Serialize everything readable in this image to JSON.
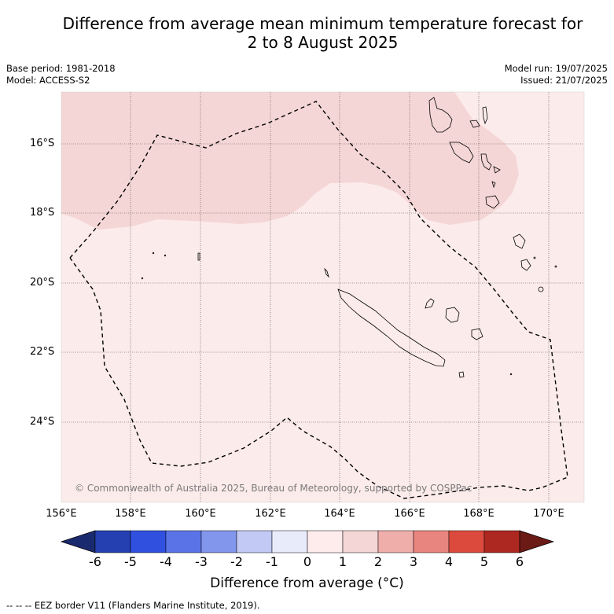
{
  "title": {
    "line1": "Difference from average mean minimum temperature forecast for",
    "line2": "2 to 8 August 2025"
  },
  "meta_left": {
    "base_period": "Base period: 1981-2018",
    "model": "Model: ACCESS-S2"
  },
  "meta_right": {
    "model_run": "Model run: 19/07/2025",
    "issued": "Issued: 21/07/2025"
  },
  "map": {
    "latitude_labels": [
      "16°S",
      "18°S",
      "20°S",
      "22°S",
      "24°S"
    ],
    "longitude_labels": [
      "156°E",
      "158°E",
      "160°E",
      "162°E",
      "164°E",
      "166°E",
      "168°E",
      "170°E"
    ],
    "copyright": "© Commonwealth of Australia 2025, Bureau of Meteorology, supported by COSPPac",
    "regions": [
      {
        "category": "1 to 2",
        "color": "#f5d6d6"
      },
      {
        "category": "0 to 1",
        "color": "#fcebeb"
      }
    ]
  },
  "colorbar": {
    "ticks": [
      "-6",
      "-5",
      "-4",
      "-3",
      "-2",
      "-1",
      "0",
      "1",
      "2",
      "3",
      "4",
      "5",
      "6"
    ],
    "colors": [
      "#1a2a6e",
      "#2540b0",
      "#3050e0",
      "#5a74e8",
      "#8296ec",
      "#c2c9f4",
      "#e8ebfa",
      "#fdeceb",
      "#f5d6d6",
      "#f0aeab",
      "#e8857e",
      "#dc4a3e",
      "#ad2820",
      "#6b1a16"
    ],
    "label": "Difference from average (°C)"
  },
  "footer": "--  --  -- EEZ border V11 (Flanders Marine Institute, 2019)."
}
